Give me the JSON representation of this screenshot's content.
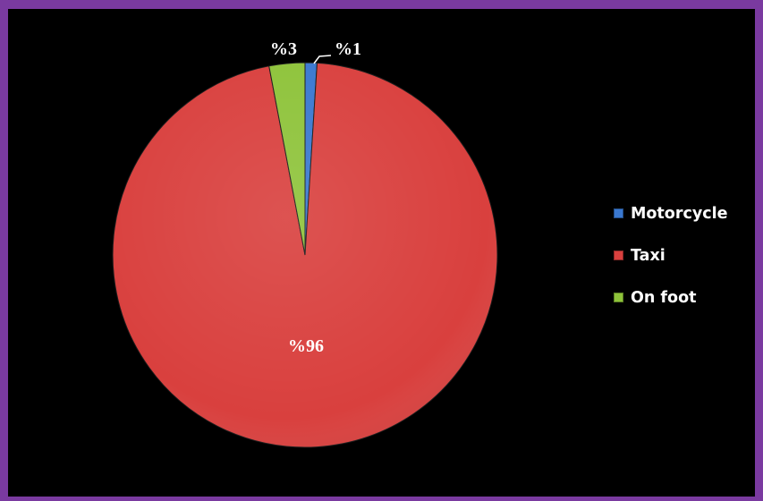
{
  "chart_data": {
    "type": "pie",
    "categories": [
      "Motorcycle",
      "Taxi",
      "On foot"
    ],
    "values": [
      1,
      96,
      3
    ],
    "data_labels": [
      "%1",
      "%96",
      "%3"
    ],
    "colors": [
      "#3a78d0",
      "#d9403e",
      "#8ec33a"
    ],
    "label_color": "#ffffff",
    "background": "#000000",
    "frame_color": "#7a3aa0",
    "legend_placement": "right"
  }
}
